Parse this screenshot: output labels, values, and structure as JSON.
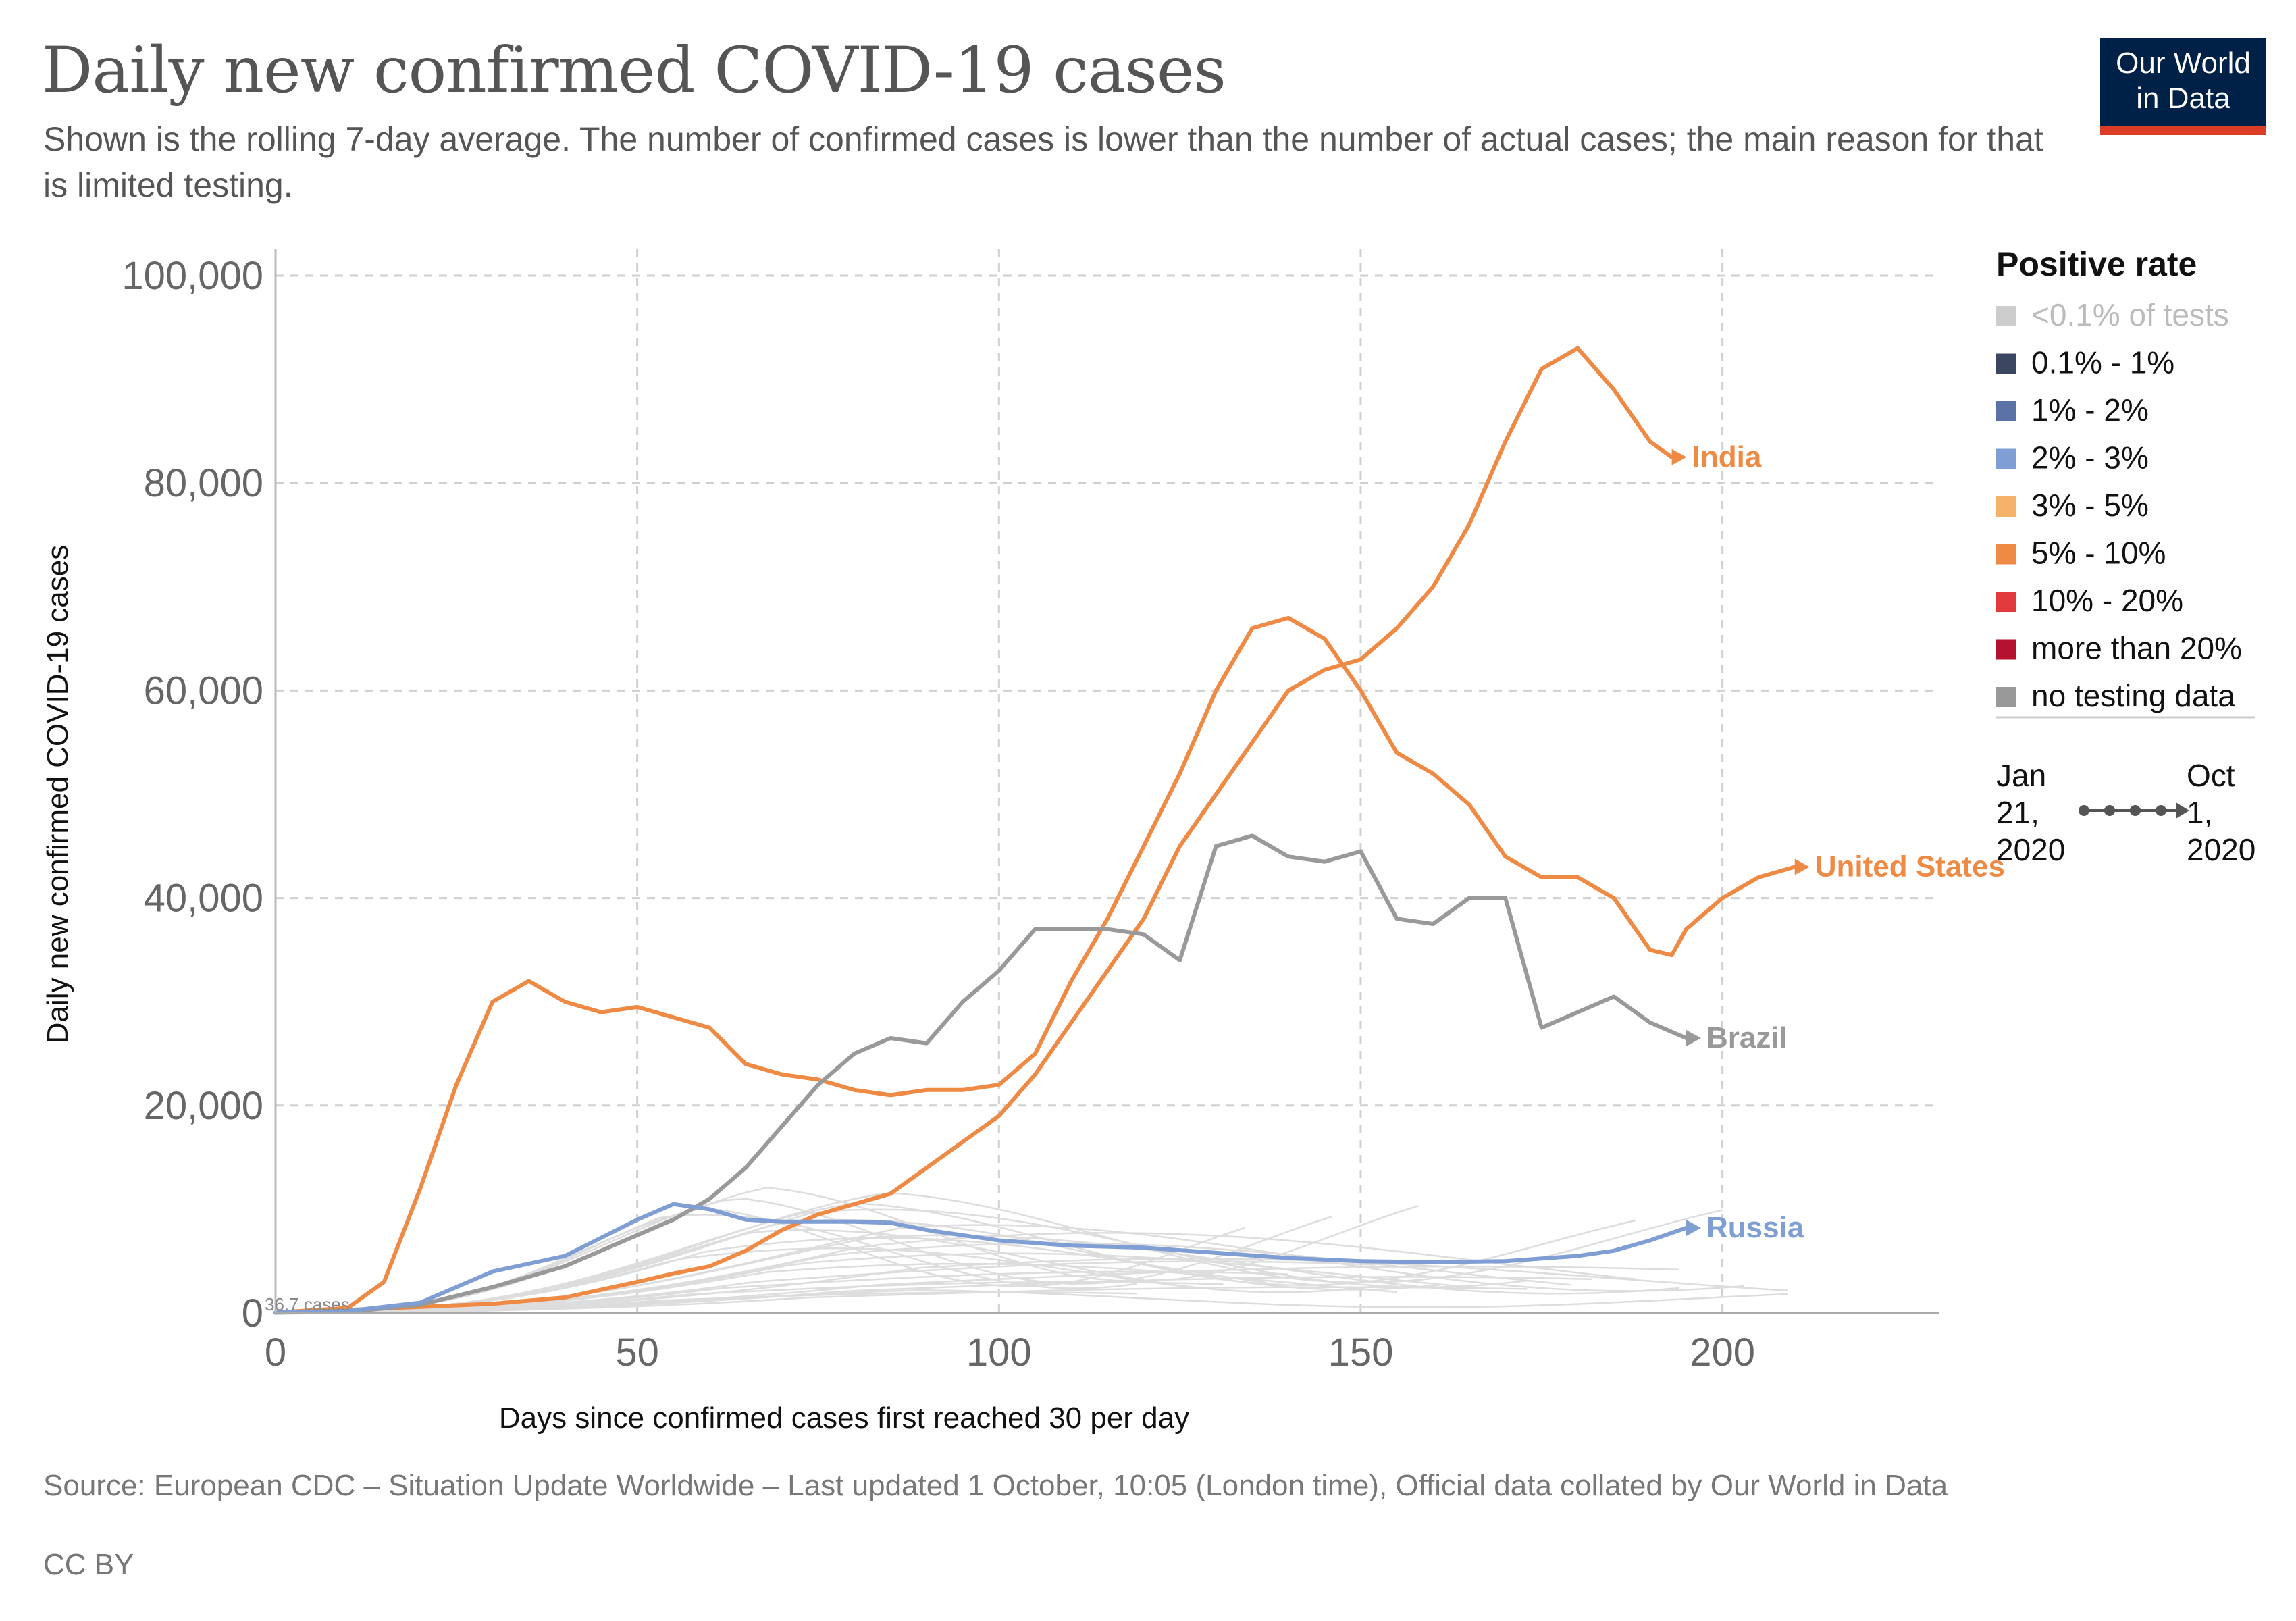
{
  "title": "Daily new confirmed COVID-19 cases",
  "subtitle": "Shown is the rolling 7-day average. The number of confirmed cases is lower than the number of actual cases; the main reason for that is limited testing.",
  "logo": {
    "line1": "Our World",
    "line2": "in Data"
  },
  "source": "Source: European CDC – Situation Update Worldwide – Last updated 1 October, 10:05 (London time), Official data collated by Our World in Data",
  "license": "CC BY",
  "legend": {
    "title": "Positive rate",
    "items": [
      {
        "label": "<0.1% of tests",
        "color": "#cccccc",
        "text_color": "#bbbbbb"
      },
      {
        "label": "0.1% - 1%",
        "color": "#3a4660",
        "text_color": "#111111"
      },
      {
        "label": "1% - 2%",
        "color": "#5b72a6",
        "text_color": "#111111"
      },
      {
        "label": "2% - 3%",
        "color": "#7f9ed3",
        "text_color": "#111111"
      },
      {
        "label": "3% - 5%",
        "color": "#f6b26b",
        "text_color": "#111111"
      },
      {
        "label": "5% - 10%",
        "color": "#ef8a45",
        "text_color": "#111111"
      },
      {
        "label": "10% - 20%",
        "color": "#e23b3b",
        "text_color": "#111111"
      },
      {
        "label": "more than 20%",
        "color": "#b3112e",
        "text_color": "#111111"
      },
      {
        "label": "no testing data",
        "color": "#999999",
        "text_color": "#111111"
      }
    ],
    "timeline": {
      "start": [
        "Jan",
        "21,",
        "2020"
      ],
      "end": [
        "Oct",
        "1,",
        "2020"
      ]
    }
  },
  "chart_data": {
    "type": "line",
    "title": "Daily new confirmed COVID-19 cases",
    "xlabel": "Days since confirmed cases first reached 30 per day",
    "ylabel": "Daily new confirmed COVID-19 cases",
    "xlim": [
      0,
      230
    ],
    "ylim": [
      0,
      100000
    ],
    "x_ticks": [
      0,
      50,
      100,
      150,
      200
    ],
    "x_tick_labels": [
      "0",
      "50",
      "100",
      "150",
      "200"
    ],
    "y_ticks": [
      0,
      20000,
      40000,
      60000,
      80000,
      100000
    ],
    "y_tick_labels": [
      "0",
      "20,000",
      "40,000",
      "60,000",
      "80,000",
      "100,000"
    ],
    "grid": true,
    "start_annotation": "36.7 cases",
    "series": [
      {
        "name": "India",
        "color": "#ef8a45",
        "x": [
          0,
          10,
          20,
          30,
          40,
          50,
          55,
          60,
          65,
          70,
          75,
          80,
          85,
          90,
          95,
          100,
          105,
          110,
          115,
          120,
          125,
          130,
          135,
          140,
          145,
          150,
          155,
          160,
          165,
          170,
          175,
          180,
          185,
          190,
          193
        ],
        "y": [
          40,
          300,
          600,
          900,
          1500,
          3000,
          3800,
          4500,
          6000,
          8000,
          9500,
          10500,
          11500,
          14000,
          16500,
          19000,
          23000,
          28000,
          33000,
          38000,
          45000,
          50000,
          55000,
          60000,
          62000,
          63000,
          66000,
          70000,
          76000,
          84000,
          91000,
          93000,
          89000,
          84000,
          82500
        ]
      },
      {
        "name": "United States",
        "color": "#ef8a45",
        "x": [
          0,
          10,
          15,
          20,
          25,
          30,
          35,
          40,
          45,
          50,
          55,
          60,
          65,
          70,
          75,
          80,
          85,
          90,
          95,
          100,
          105,
          110,
          115,
          120,
          125,
          130,
          135,
          140,
          145,
          150,
          155,
          160,
          165,
          170,
          175,
          180,
          185,
          190,
          193,
          195,
          200,
          205,
          210
        ],
        "y": [
          40,
          500,
          3000,
          12000,
          22000,
          30000,
          32000,
          30000,
          29000,
          29500,
          28500,
          27500,
          24000,
          23000,
          22500,
          21500,
          21000,
          21500,
          21500,
          22000,
          25000,
          32000,
          38000,
          45000,
          52000,
          60000,
          66000,
          67000,
          65000,
          60000,
          54000,
          52000,
          49000,
          44000,
          42000,
          42000,
          40000,
          35000,
          34500,
          37000,
          40000,
          42000,
          43000
        ]
      },
      {
        "name": "Brazil",
        "color": "#999999",
        "x": [
          0,
          10,
          20,
          30,
          35,
          40,
          45,
          50,
          55,
          60,
          65,
          70,
          75,
          80,
          85,
          90,
          95,
          100,
          105,
          110,
          115,
          120,
          125,
          130,
          135,
          140,
          145,
          150,
          155,
          160,
          165,
          170,
          175,
          180,
          185,
          190,
          195
        ],
        "y": [
          40,
          100,
          800,
          2500,
          3500,
          4500,
          6000,
          7500,
          9000,
          11000,
          14000,
          18000,
          22000,
          25000,
          26500,
          26000,
          30000,
          33000,
          37000,
          37000,
          37000,
          36500,
          34000,
          45000,
          46000,
          44000,
          43500,
          44500,
          38000,
          37500,
          40000,
          40000,
          27500,
          29000,
          30500,
          28000,
          26500
        ]
      },
      {
        "name": "Russia",
        "color": "#7f9ed3",
        "x": [
          0,
          10,
          20,
          25,
          30,
          40,
          50,
          55,
          60,
          65,
          70,
          75,
          80,
          85,
          90,
          95,
          100,
          110,
          120,
          130,
          140,
          150,
          160,
          170,
          180,
          185,
          190,
          195
        ],
        "y": [
          40,
          200,
          1000,
          2500,
          4000,
          5500,
          9000,
          10500,
          10000,
          9000,
          8800,
          8800,
          8800,
          8700,
          8000,
          7500,
          7000,
          6500,
          6300,
          5800,
          5300,
          5000,
          4900,
          5000,
          5500,
          6000,
          7000,
          8200
        ]
      }
    ],
    "annotations": [
      "India",
      "United States",
      "Brazil",
      "Russia"
    ]
  }
}
